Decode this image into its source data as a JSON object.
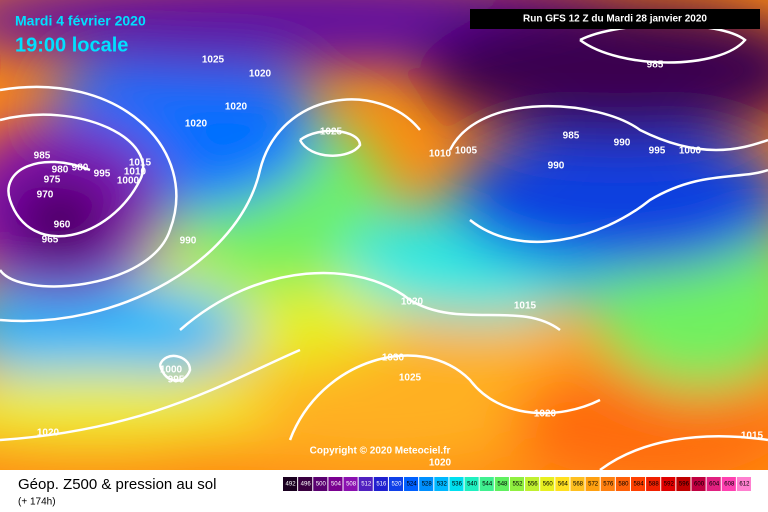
{
  "header": {
    "date": "Mardi 4 février 2020",
    "time": "19:00 locale",
    "run": "Run GFS 12 Z du Mardi 28 janvier 2020"
  },
  "isobar_labels": [
    "1025",
    "1020",
    "1020",
    "1020",
    "1025",
    "985",
    "980",
    "980",
    "975",
    "970",
    "960",
    "965",
    "995",
    "1000",
    "1010",
    "1015",
    "990",
    "1010",
    "1005",
    "985",
    "990",
    "990",
    "995",
    "1000",
    "985",
    "1020",
    "1015",
    "1030",
    "1025",
    "1000",
    "995",
    "1020",
    "1020",
    "1015",
    "1020"
  ],
  "copyright": "Copyright © 2020 Meteociel.fr",
  "footer": {
    "title": "Géop. Z500 & pression au sol",
    "subtitle": "(+ 174h)"
  },
  "legend": {
    "labels": [
      "492",
      "496",
      "500",
      "504",
      "508",
      "512",
      "516",
      "520",
      "524",
      "528",
      "532",
      "536",
      "540",
      "544",
      "548",
      "552",
      "556",
      "560",
      "564",
      "568",
      "572",
      "576",
      "580",
      "584",
      "588",
      "592",
      "596",
      "600",
      "604",
      "608",
      "612"
    ],
    "colors": [
      "#1a0020",
      "#3a0040",
      "#5a0070",
      "#7a0090",
      "#8a10b0",
      "#5020c0",
      "#2020d0",
      "#1040e8",
      "#0060ff",
      "#0090ff",
      "#00b8ff",
      "#00e0f0",
      "#20f0c0",
      "#40f090",
      "#60f060",
      "#90f040",
      "#c0f030",
      "#e8f020",
      "#ffe020",
      "#ffc020",
      "#ffa010",
      "#ff8010",
      "#ff6008",
      "#ff4000",
      "#f02000",
      "#e00000",
      "#c00000",
      "#c00040",
      "#e02080",
      "#ff40b0",
      "#ff80d0"
    ]
  }
}
